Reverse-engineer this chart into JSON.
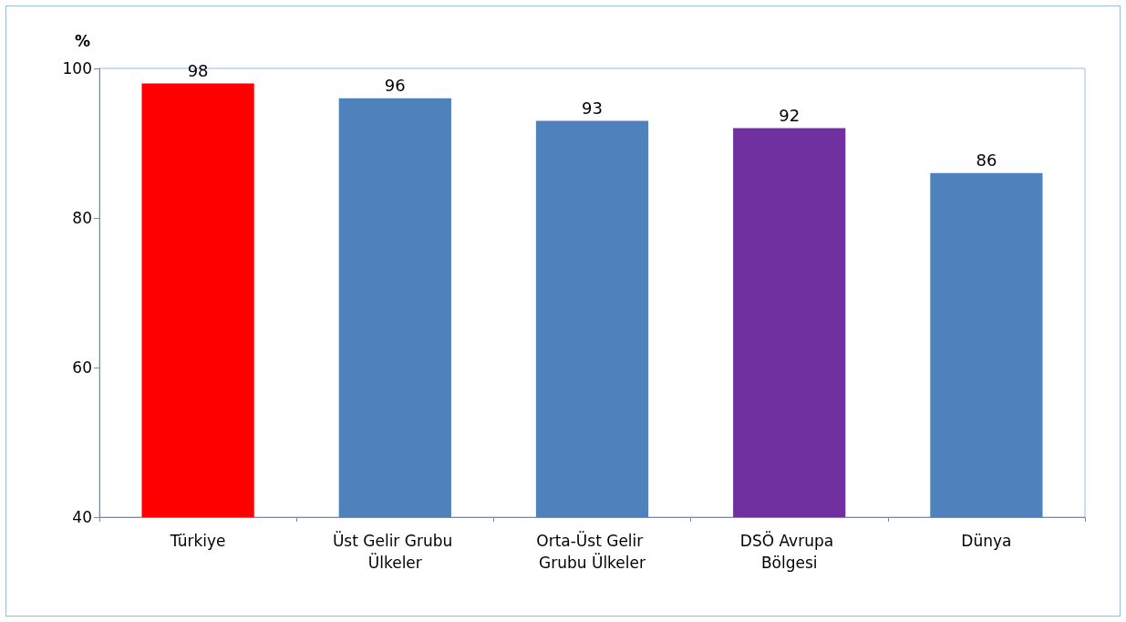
{
  "chart_data": {
    "type": "bar",
    "ylabel": "%",
    "categories": [
      "Türkiye",
      "Üst Gelir Grubu Ülkeler",
      "Orta-Üst Gelir Grubu Ülkeler",
      "DSÖ Avrupa Bölgesi",
      "Dünya"
    ],
    "values": [
      98,
      96,
      93,
      92,
      86
    ],
    "colors": [
      "#ff0000",
      "#4f81bd",
      "#4f81bd",
      "#7030a0",
      "#4f81bd"
    ],
    "ylim": [
      40,
      100
    ],
    "yticks": [
      40,
      60,
      80,
      100
    ],
    "grid": false,
    "data_labels": true
  }
}
